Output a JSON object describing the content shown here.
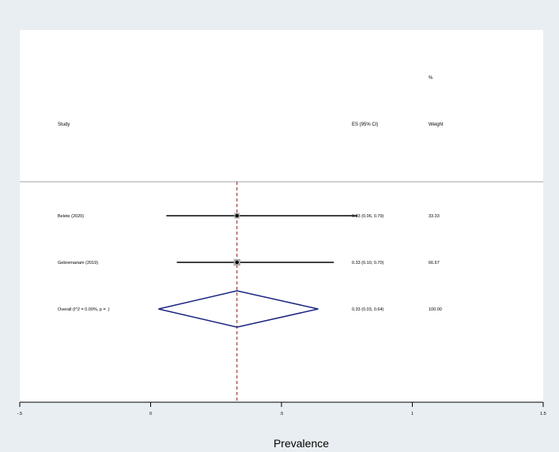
{
  "chart_data": {
    "type": "forest",
    "headers": {
      "study": "Study",
      "es": "ES (95% CI)",
      "weight_top": "%",
      "weight": "Weight"
    },
    "studies": [
      {
        "label": "Belete (2020)",
        "es": 0.33,
        "ci": [
          0.06,
          0.79
        ],
        "es_text": "0.33 (0.06, 0.79)",
        "weight_text": "33.33"
      },
      {
        "label": "Gebremariam (2019)",
        "es": 0.33,
        "ci": [
          0.1,
          0.7
        ],
        "es_text": "0.33 (0.10, 0.70)",
        "weight_text": "66.67"
      }
    ],
    "overall": {
      "label": "Overall  (I^2 = 0.00%, p = .)",
      "es": 0.33,
      "ci": [
        0.03,
        0.64
      ],
      "es_text": "0.33 (0.03, 0.64)",
      "weight_text": "100.00"
    },
    "x_ticks": [
      -0.5,
      0,
      0.5,
      1,
      1.5
    ],
    "x_tick_labels": [
      "-.5",
      "0",
      ".5",
      "1",
      "1.5"
    ],
    "xlim": [
      -0.5,
      1.5
    ],
    "xlabel": "Prevalence",
    "colors": {
      "outer_bg": "#e8eef1",
      "plot_bg": "#ffffff",
      "ci_line": "#000000",
      "diamond": "#1a237e",
      "overall_line": "#8b1a1a",
      "divider": "#a0a0a0"
    }
  }
}
